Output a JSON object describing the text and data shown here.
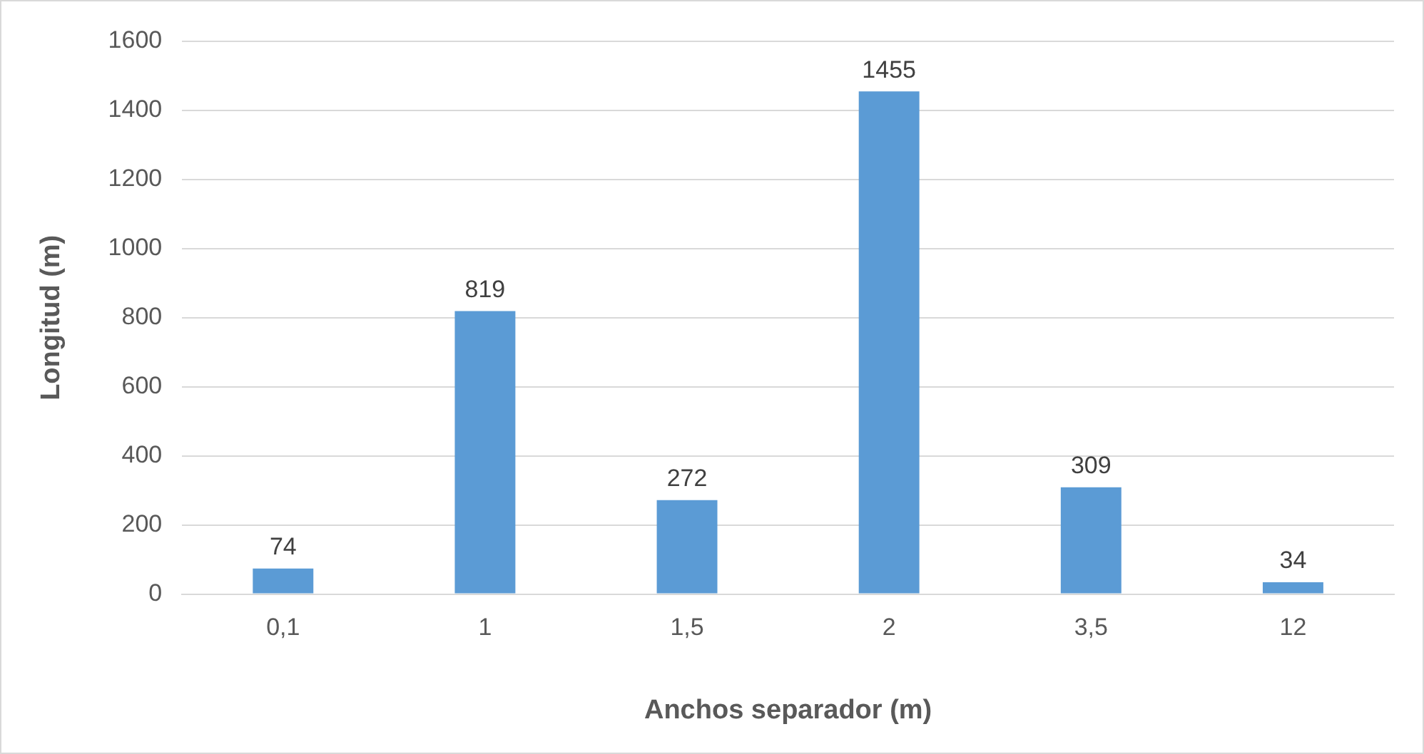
{
  "chart_data": {
    "type": "bar",
    "xlabel": "Anchos separador (m)",
    "ylabel": "Longitud (m)",
    "categories": [
      "0,1",
      "1",
      "1,5",
      "2",
      "3,5",
      "12"
    ],
    "series": [
      {
        "color": "#5b9bd5",
        "values": [
          74,
          819,
          272,
          1455,
          309,
          34
        ]
      }
    ],
    "ylim": [
      0,
      1600
    ],
    "yticks": [
      0,
      200,
      400,
      600,
      800,
      1000,
      1200,
      1400,
      1600
    ],
    "grid": "y",
    "legend": false,
    "data_labels": true
  }
}
